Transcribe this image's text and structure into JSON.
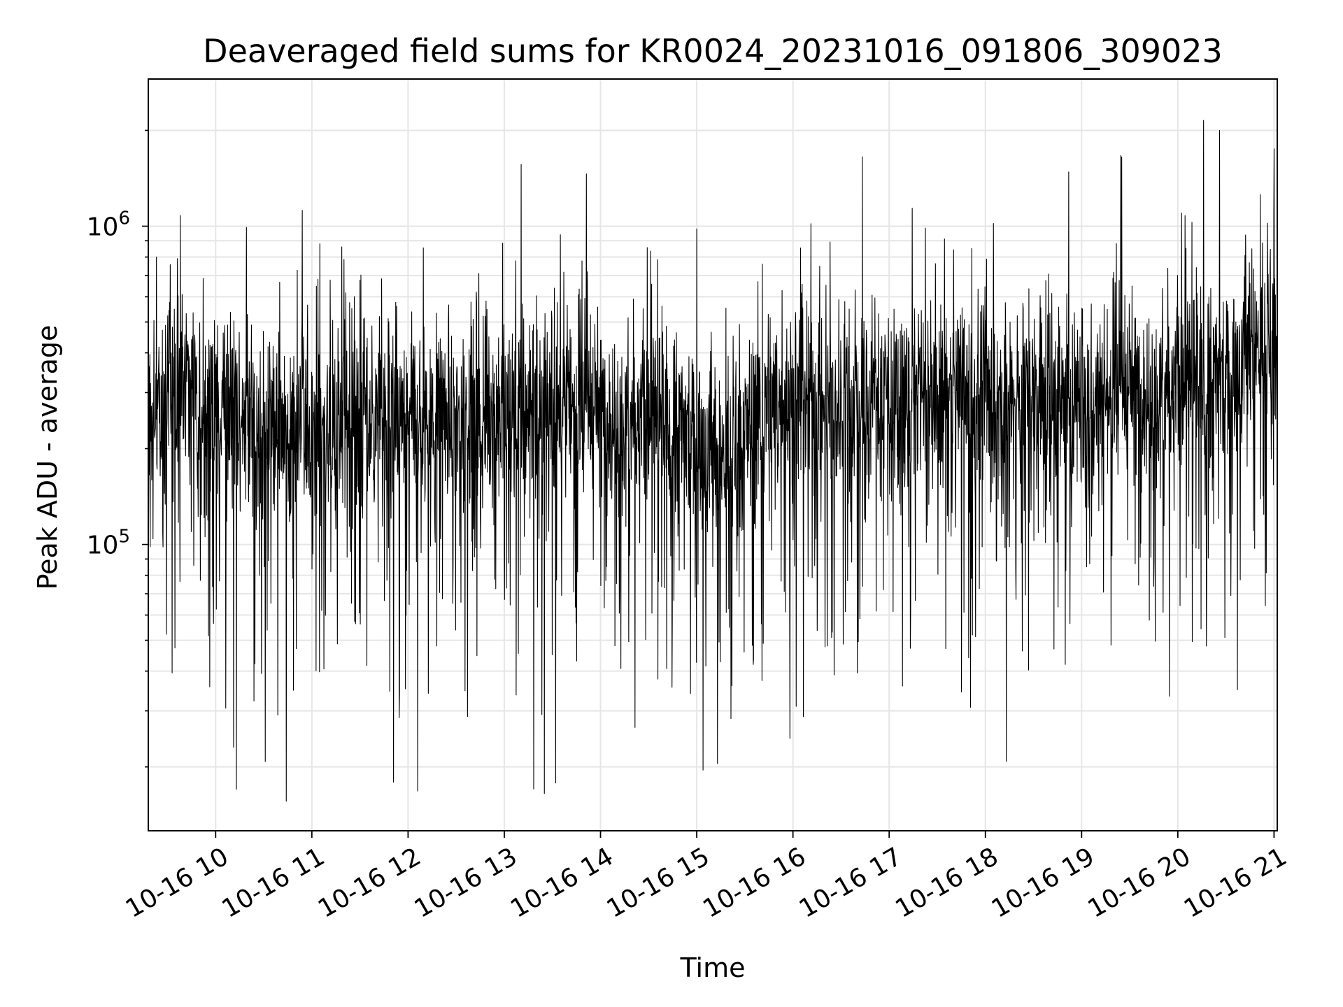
{
  "chart_data": {
    "type": "line",
    "title": "Deaveraged field sums for KR0024_20231016_091806_309023",
    "xlabel": "Time",
    "ylabel": "Peak ADU - average",
    "yscale": "log",
    "ylim": [
      12600,
      2900000
    ],
    "xlim": [
      "2023-10-16 09:18",
      "2023-10-16 21:02"
    ],
    "grid": true,
    "x_ticks": [
      "10-16 10",
      "10-16 11",
      "10-16 12",
      "10-16 13",
      "10-16 14",
      "10-16 15",
      "10-16 16",
      "10-16 17",
      "10-16 18",
      "10-16 19",
      "10-16 20",
      "10-16 21"
    ],
    "y_ticks": [
      {
        "base": "10",
        "exp": "5",
        "value": 100000
      },
      {
        "base": "10",
        "exp": "6",
        "value": 1000000
      }
    ],
    "series": [
      {
        "color": "#000000",
        "x_start": "2023-10-16 09:18",
        "x_end": "2023-10-16 21:02",
        "median_trend": [
          [
            "2023-10-16 09:18",
            250000
          ],
          [
            "2023-10-16 09:35",
            320000
          ],
          [
            "2023-10-16 09:50",
            280000
          ],
          [
            "2023-10-16 10:30",
            230000
          ],
          [
            "2023-10-16 12:00",
            240000
          ],
          [
            "2023-10-16 13:30",
            270000
          ],
          [
            "2023-10-16 14:45",
            240000
          ],
          [
            "2023-10-16 15:15",
            190000
          ],
          [
            "2023-10-16 15:45",
            270000
          ],
          [
            "2023-10-16 17:00",
            290000
          ],
          [
            "2023-10-16 18:30",
            280000
          ],
          [
            "2023-10-16 19:30",
            300000
          ],
          [
            "2023-10-16 20:30",
            330000
          ],
          [
            "2023-10-16 20:45",
            420000
          ],
          [
            "2023-10-16 21:02",
            500000
          ]
        ],
        "peaks": [
          [
            "2023-10-16 09:38",
            1080000
          ],
          [
            "2023-10-16 11:05",
            880000
          ],
          [
            "2023-10-16 13:35",
            940000
          ],
          [
            "2023-10-16 15:00",
            980000
          ],
          [
            "2023-10-16 18:05",
            1020000
          ],
          [
            "2023-10-16 18:52",
            1480000
          ],
          [
            "2023-10-16 19:25",
            1650000
          ],
          [
            "2023-10-16 20:16",
            2150000
          ],
          [
            "2023-10-16 20:26",
            2000000
          ],
          [
            "2023-10-16 21:00",
            1750000
          ]
        ],
        "troughs": [
          [
            "2023-10-16 10:13",
            17000
          ],
          [
            "2023-10-16 10:44",
            15600
          ],
          [
            "2023-10-16 11:51",
            17900
          ],
          [
            "2023-10-16 12:06",
            16800
          ],
          [
            "2023-10-16 13:25",
            16500
          ],
          [
            "2023-10-16 13:32",
            17800
          ],
          [
            "2023-10-16 15:13",
            20500
          ],
          [
            "2023-10-16 18:13",
            20800
          ]
        ]
      }
    ]
  }
}
